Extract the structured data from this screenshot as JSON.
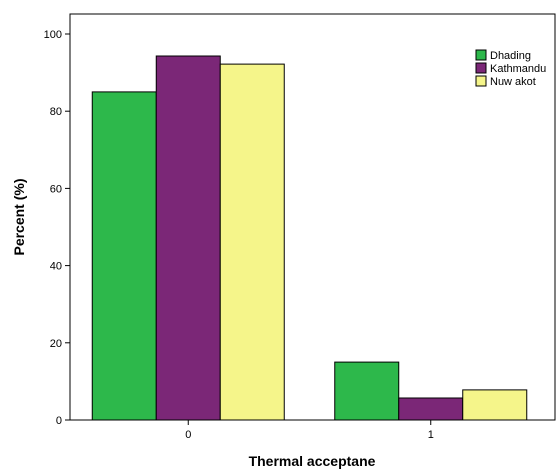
{
  "chart_data": {
    "type": "bar",
    "categories": [
      "0",
      "1"
    ],
    "series": [
      {
        "name": "Dhading",
        "color": "#2db84b",
        "values": [
          85,
          15
        ]
      },
      {
        "name": "Kathmandu",
        "color": "#7b2777",
        "values": [
          94.3,
          5.7
        ]
      },
      {
        "name": "Nuw akot",
        "color": "#f5f58a",
        "values": [
          92.2,
          7.8
        ]
      }
    ],
    "xlabel": "Thermal acceptane",
    "ylabel": "Percent (%)",
    "ylim": [
      0,
      100
    ],
    "yticks": [
      0,
      20,
      40,
      60,
      80,
      100
    ],
    "grid": false,
    "legend_position": "top-right"
  }
}
